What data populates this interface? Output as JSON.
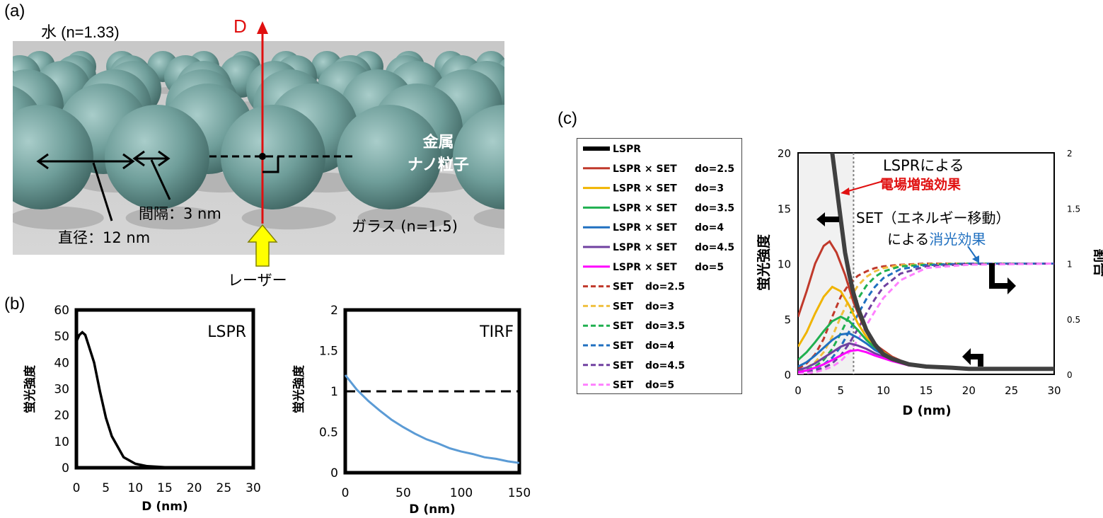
{
  "panels": {
    "a": {
      "label": "(a)",
      "water": "水 (n=1.33)",
      "axis_D": "D",
      "particle": [
        "金属",
        "ナノ粒子"
      ],
      "gap": "間隔：3 nm",
      "diameter": "直径：12 nm",
      "glass": "ガラス (n=1.5)",
      "laser": "レーザー"
    },
    "b": {
      "label": "(b)"
    },
    "c": {
      "label": "(c)",
      "annot_lspr_line1": "LSPRによる",
      "annot_lspr_line2": "電場増強効果",
      "annot_set_line1": "SET（エネルギー移動）",
      "annot_set_line2_prefix": "による",
      "annot_set_line2_colored": "消光効果"
    }
  },
  "colors": {
    "red_axis": "#e01010",
    "laser_arrow": "#ffff00",
    "sphere": "#6f9e9a",
    "tirf_line": "#5b9bd5"
  },
  "chart_data": [
    {
      "id": "lspr",
      "type": "line",
      "title": "LSPR",
      "xlabel": "D (nm)",
      "ylabel": "蛍光強度",
      "xlim": [
        0,
        30
      ],
      "ylim": [
        0,
        60
      ],
      "xticks": [
        "0",
        "5",
        "10",
        "15",
        "20",
        "25",
        "30"
      ],
      "yticks": [
        "0",
        "10",
        "20",
        "30",
        "40",
        "50",
        "60"
      ],
      "series": [
        {
          "x": [
            0,
            0.5,
            1,
            1.5,
            2,
            3,
            4,
            5,
            6,
            8,
            10,
            12,
            15,
            18,
            20,
            30
          ],
          "y": [
            48,
            50.5,
            51.5,
            50.5,
            47,
            40,
            29,
            19,
            12,
            4,
            1.5,
            0.6,
            0.2,
            0.1,
            0,
            0
          ]
        }
      ]
    },
    {
      "id": "tirf",
      "type": "line",
      "title": "TIRF",
      "xlabel": "D (nm)",
      "ylabel": "蛍光強度",
      "xlim": [
        0,
        150
      ],
      "ylim": [
        0,
        2
      ],
      "xticks": [
        "0",
        "50",
        "100",
        "150"
      ],
      "yticks": [
        "0",
        "0.5",
        "1",
        "1.5",
        "2"
      ],
      "series": [
        {
          "x": [
            0,
            10,
            20,
            30,
            40,
            50,
            60,
            70,
            80,
            90,
            100,
            110,
            120,
            130,
            140,
            150
          ],
          "y": [
            1.2,
            1.02,
            0.88,
            0.76,
            0.65,
            0.56,
            0.48,
            0.41,
            0.36,
            0.3,
            0.26,
            0.23,
            0.19,
            0.17,
            0.14,
            0.12
          ]
        }
      ],
      "reference_line": {
        "y": 1,
        "style": "dashed"
      }
    },
    {
      "id": "set",
      "type": "line",
      "xlabel": "D (nm)",
      "ylabel": "蛍光強度",
      "y2label": "割合",
      "xlim": [
        0,
        30
      ],
      "ylim": [
        0,
        20
      ],
      "y2lim": [
        0,
        2
      ],
      "xticks": [
        "0",
        "5",
        "10",
        "15",
        "20",
        "25",
        "30"
      ],
      "yticks": [
        "0",
        "5",
        "10",
        "15",
        "20"
      ],
      "y2ticks": [
        "0",
        "0.5",
        "1",
        "1.5",
        "2"
      ],
      "dotted_vline_x": 6.5,
      "legend": [
        {
          "label": "LSPR",
          "do": "",
          "color": "#000000",
          "dash": false,
          "bold": true
        },
        {
          "label": "LSPR × SET",
          "do": "do=2.5",
          "color": "#c0392b",
          "dash": false
        },
        {
          "label": "LSPR × SET",
          "do": "do=3",
          "color": "#f0b400",
          "dash": false
        },
        {
          "label": "LSPR × SET",
          "do": "do=3.5",
          "color": "#20b050",
          "dash": false
        },
        {
          "label": "LSPR × SET",
          "do": "do=4",
          "color": "#2070c0",
          "dash": false
        },
        {
          "label": "LSPR × SET",
          "do": "do=4.5",
          "color": "#7040a0",
          "dash": false
        },
        {
          "label": "LSPR × SET",
          "do": "do=5",
          "color": "#ff00ff",
          "dash": false
        },
        {
          "label": "SET",
          "do": "do=2.5",
          "color": "#c0392b",
          "dash": true
        },
        {
          "label": "SET",
          "do": "do=3",
          "color": "#f0c040",
          "dash": true
        },
        {
          "label": "SET",
          "do": "do=3.5",
          "color": "#20b050",
          "dash": true
        },
        {
          "label": "SET",
          "do": "do=4",
          "color": "#2070c0",
          "dash": true
        },
        {
          "label": "SET",
          "do": "do=4.5",
          "color": "#7040a0",
          "dash": true
        },
        {
          "label": "SET",
          "do": "do=5",
          "color": "#ff80ff",
          "dash": true
        }
      ],
      "series": [
        {
          "name": "LSPR",
          "axis": "left",
          "color": "#404040",
          "width": 6,
          "x": [
            4.0,
            4.5,
            5,
            5.5,
            6,
            6.5,
            7,
            8,
            9,
            10,
            11,
            13,
            15,
            18,
            20,
            25,
            30
          ],
          "y": [
            20,
            17,
            14,
            11,
            9,
            7.3,
            6,
            4,
            2.7,
            1.8,
            1.4,
            0.9,
            0.7,
            0.6,
            0.5,
            0.5,
            0.5
          ]
        },
        {
          "name": "LSPR × SET do=2.5",
          "axis": "left",
          "color": "#c0392b",
          "x": [
            0,
            1,
            2,
            3,
            3.7,
            4.5,
            5.5,
            6.5,
            7.5,
            9,
            11,
            13,
            15,
            20,
            30
          ],
          "y": [
            5.2,
            7.5,
            10,
            11.6,
            12,
            11,
            9,
            6.5,
            4.6,
            2.7,
            1.6,
            0.9,
            0.7,
            0.5,
            0.5
          ]
        },
        {
          "name": "LSPR × SET do=3",
          "axis": "left",
          "color": "#f0b400",
          "x": [
            0,
            1,
            2,
            3,
            4,
            5,
            6,
            7,
            8,
            9,
            11,
            13,
            15,
            20,
            30
          ],
          "y": [
            2.5,
            3.8,
            5.5,
            7,
            7.9,
            7.5,
            6.2,
            4.6,
            3.4,
            2.5,
            1.5,
            0.9,
            0.7,
            0.5,
            0.5
          ]
        },
        {
          "name": "LSPR × SET do=3.5",
          "axis": "left",
          "color": "#20b050",
          "x": [
            0,
            1,
            2,
            3,
            4,
            5,
            6,
            7,
            8,
            9,
            11,
            13,
            15,
            20,
            30
          ],
          "y": [
            1.3,
            2,
            2.9,
            3.9,
            4.8,
            5.2,
            4.8,
            4,
            3.1,
            2.4,
            1.5,
            0.9,
            0.7,
            0.5,
            0.5
          ]
        },
        {
          "name": "LSPR × SET do=4",
          "axis": "left",
          "color": "#2070c0",
          "x": [
            0,
            1,
            2,
            3,
            4,
            5,
            6,
            7,
            8,
            9,
            11,
            13,
            15,
            20,
            30
          ],
          "y": [
            0.7,
            1.1,
            1.7,
            2.4,
            3.1,
            3.6,
            3.7,
            3.3,
            2.8,
            2.2,
            1.4,
            0.9,
            0.7,
            0.5,
            0.5
          ]
        },
        {
          "name": "LSPR × SET do=4.5",
          "axis": "left",
          "color": "#7040a0",
          "x": [
            0,
            1,
            2,
            3,
            4,
            5,
            6,
            7,
            8,
            9,
            11,
            13,
            15,
            20,
            30
          ],
          "y": [
            0.4,
            0.6,
            1,
            1.5,
            2,
            2.5,
            2.8,
            2.6,
            2.3,
            1.9,
            1.3,
            0.9,
            0.7,
            0.5,
            0.5
          ]
        },
        {
          "name": "LSPR × SET do=5",
          "axis": "left",
          "color": "#ff00ff",
          "x": [
            0,
            1,
            2,
            3,
            4,
            5,
            6,
            7,
            8,
            9,
            11,
            13,
            15,
            20,
            30
          ],
          "y": [
            0.2,
            0.35,
            0.6,
            0.9,
            1.3,
            1.7,
            2.1,
            2.2,
            2,
            1.7,
            1.2,
            0.8,
            0.7,
            0.5,
            0.5
          ]
        },
        {
          "name": "SET do=2.5",
          "axis": "right",
          "color": "#c0392b",
          "dash": true,
          "x": [
            0,
            1,
            2,
            3,
            4,
            5,
            6,
            7,
            8,
            9,
            10,
            12,
            15,
            20,
            30
          ],
          "y": [
            0.05,
            0.1,
            0.18,
            0.32,
            0.52,
            0.7,
            0.82,
            0.89,
            0.93,
            0.96,
            0.975,
            0.99,
            1,
            1,
            1
          ]
        },
        {
          "name": "SET do=3",
          "axis": "right",
          "color": "#f0c040",
          "dash": true,
          "x": [
            0,
            1,
            2,
            3,
            4,
            5,
            6,
            7,
            8,
            9,
            10,
            12,
            15,
            20,
            30
          ],
          "y": [
            0.03,
            0.06,
            0.11,
            0.2,
            0.34,
            0.52,
            0.68,
            0.8,
            0.88,
            0.93,
            0.96,
            0.985,
            0.995,
            1,
            1
          ]
        },
        {
          "name": "SET do=3.5",
          "axis": "right",
          "color": "#20b050",
          "dash": true,
          "x": [
            0,
            1,
            2,
            3,
            4,
            5,
            6,
            7,
            8,
            9,
            10,
            12,
            15,
            20,
            30
          ],
          "y": [
            0.02,
            0.04,
            0.07,
            0.13,
            0.23,
            0.37,
            0.53,
            0.68,
            0.8,
            0.88,
            0.93,
            0.975,
            0.99,
            1,
            1
          ]
        },
        {
          "name": "SET do=4",
          "axis": "right",
          "color": "#2070c0",
          "dash": true,
          "x": [
            0,
            1,
            2,
            3,
            4,
            5,
            6,
            7,
            8,
            9,
            10,
            12,
            15,
            20,
            30
          ],
          "y": [
            0.01,
            0.025,
            0.05,
            0.09,
            0.15,
            0.25,
            0.39,
            0.54,
            0.68,
            0.79,
            0.87,
            0.95,
            0.985,
            1,
            1
          ]
        },
        {
          "name": "SET do=4.5",
          "axis": "right",
          "color": "#7040a0",
          "dash": true,
          "x": [
            0,
            1,
            2,
            3,
            4,
            5,
            6,
            7,
            8,
            9,
            10,
            12,
            15,
            20,
            30
          ],
          "y": [
            0.01,
            0.02,
            0.035,
            0.06,
            0.1,
            0.17,
            0.28,
            0.41,
            0.55,
            0.68,
            0.79,
            0.91,
            0.975,
            0.995,
            1
          ]
        },
        {
          "name": "SET do=5",
          "axis": "right",
          "color": "#ff80ff",
          "dash": true,
          "x": [
            0,
            1,
            2,
            3,
            4,
            5,
            6,
            7,
            8,
            9,
            10,
            12,
            15,
            20,
            30
          ],
          "y": [
            0.005,
            0.01,
            0.02,
            0.04,
            0.07,
            0.12,
            0.2,
            0.31,
            0.44,
            0.57,
            0.69,
            0.85,
            0.96,
            0.99,
            1
          ]
        }
      ]
    }
  ]
}
